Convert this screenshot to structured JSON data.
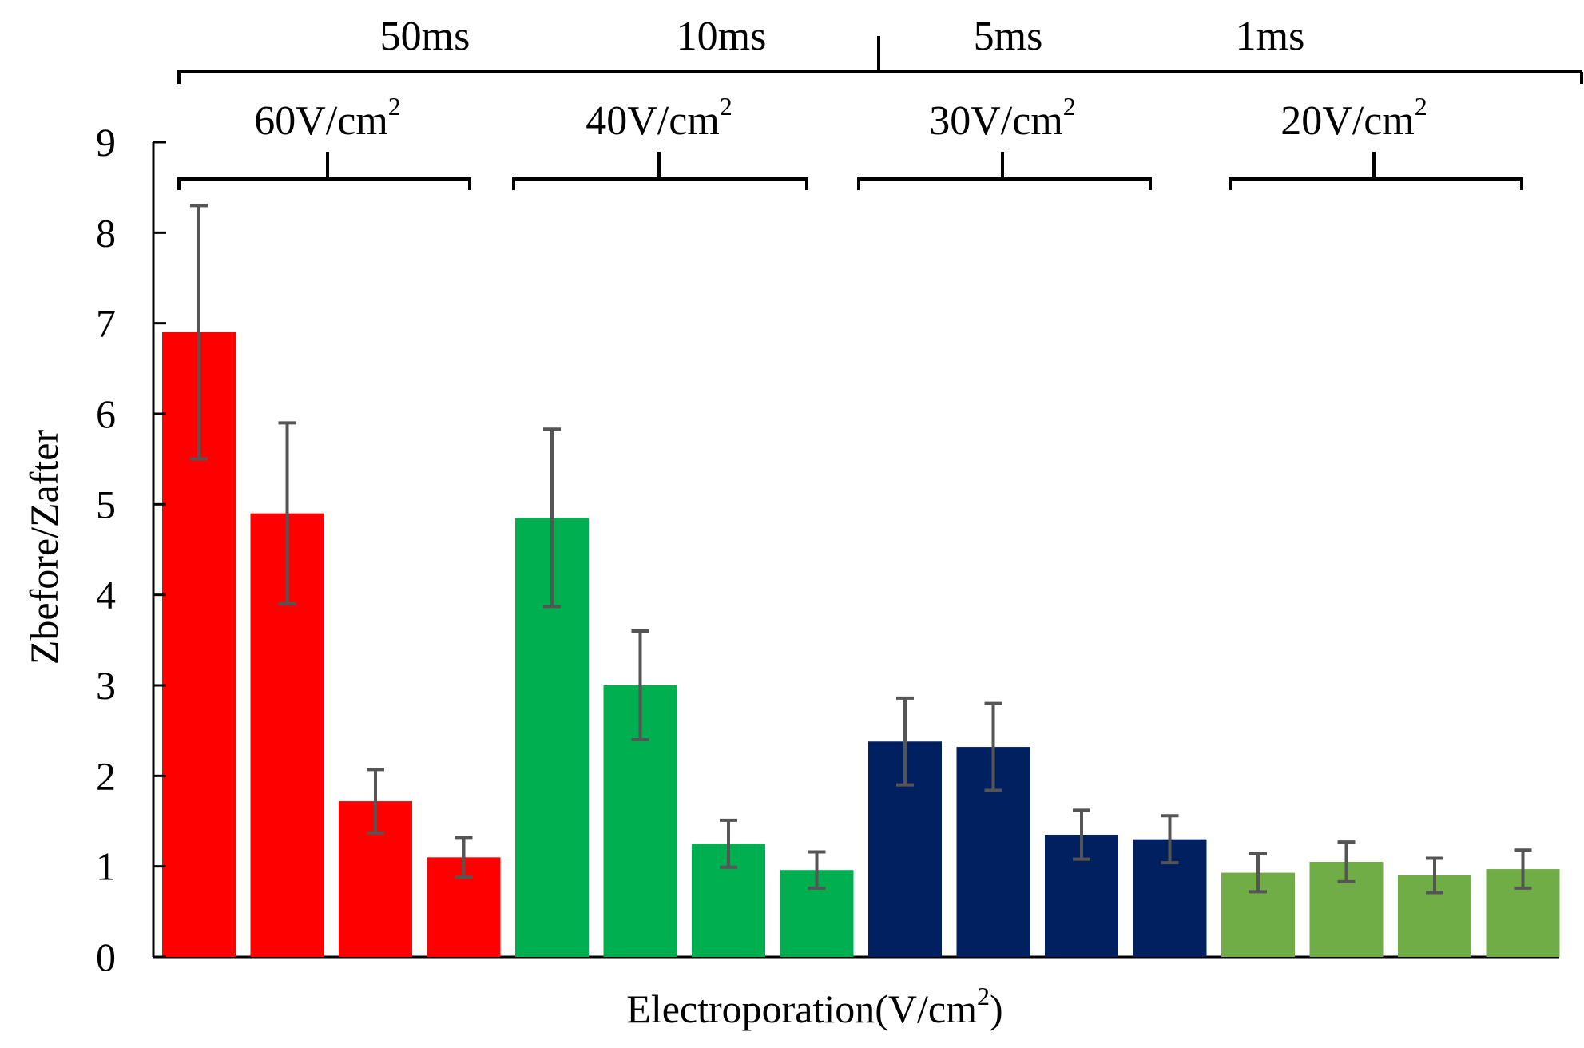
{
  "chart_data": {
    "type": "bar",
    "title": "",
    "xlabel": "Electroporation(V/cm",
    "xlabel_sup": "2",
    "xlabel_end": ")",
    "ylabel": "Zbefore/Zafter",
    "ylim": [
      0,
      9
    ],
    "yticks": [
      "0",
      "1",
      "2",
      "3",
      "4",
      "5",
      "6",
      "7",
      "8",
      "9"
    ],
    "grid": false,
    "legend": "none",
    "duration_labels": [
      "50ms",
      "10ms",
      "5ms",
      "1ms"
    ],
    "voltage_groups": [
      {
        "label": "60V/cm",
        "sup": "2",
        "color": "#ff0000"
      },
      {
        "label": "40V/cm",
        "sup": "2",
        "color": "#00b050"
      },
      {
        "label": "30V/cm",
        "sup": "2",
        "color": "#002060"
      },
      {
        "label": "20V/cm",
        "sup": "2",
        "color": "#70ad47"
      }
    ],
    "series": [
      {
        "group": 0,
        "values": [
          6.9,
          4.9,
          1.72,
          1.1
        ],
        "errors": [
          1.4,
          1.0,
          0.35,
          0.22
        ]
      },
      {
        "group": 1,
        "values": [
          4.85,
          3.0,
          1.25,
          0.96
        ],
        "errors": [
          0.98,
          0.6,
          0.26,
          0.2
        ]
      },
      {
        "group": 2,
        "values": [
          2.38,
          2.32,
          1.35,
          1.3
        ],
        "errors": [
          0.48,
          0.48,
          0.27,
          0.26
        ]
      },
      {
        "group": 3,
        "values": [
          0.93,
          1.05,
          0.9,
          0.97
        ],
        "errors": [
          0.21,
          0.22,
          0.19,
          0.21
        ]
      }
    ],
    "error_bar_color": "#555555"
  }
}
